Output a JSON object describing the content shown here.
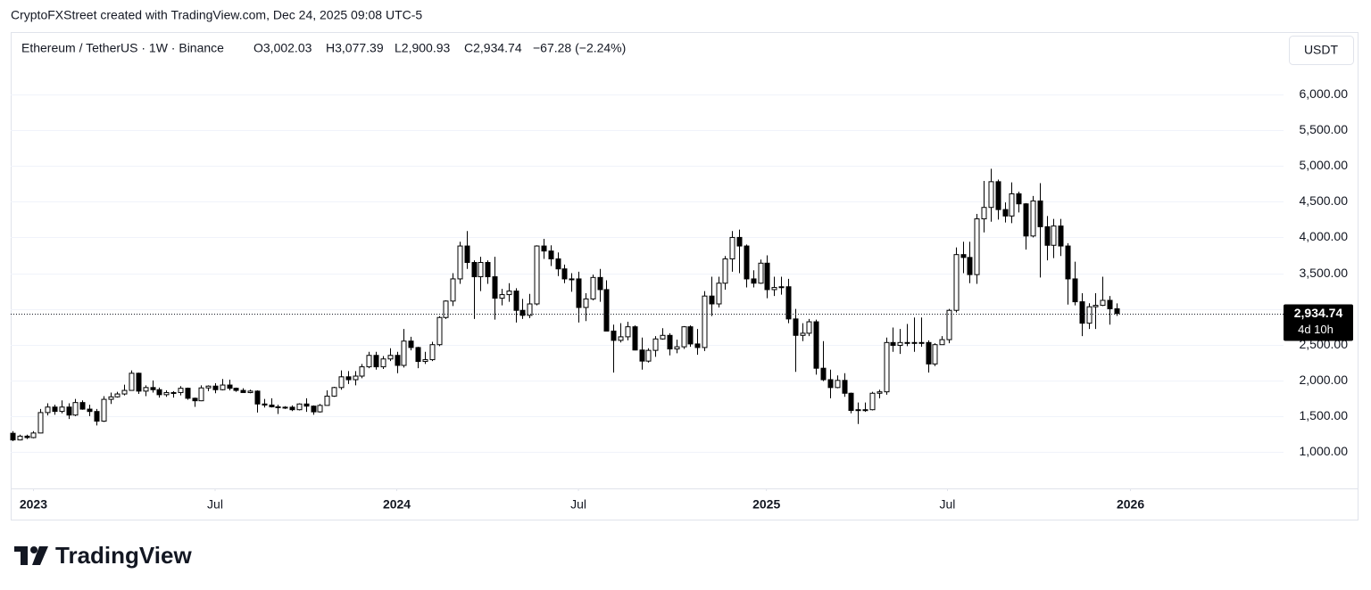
{
  "attribution": "CryptoFXStreet created with TradingView.com, Dec 24, 2025 09:08 UTC-5",
  "brand": "TradingView",
  "chart_data": {
    "type": "candlestick",
    "legend": {
      "symbol": "Ethereum / TetherUS · 1W · Binance",
      "open": "O3,002.03",
      "high": "H3,077.39",
      "low": "L2,900.93",
      "close": "C2,934.74",
      "change": "−67.28 (−2.24%)"
    },
    "currency": "USDT",
    "open": [
      1260,
      1167,
      1220,
      1200,
      1264,
      1550,
      1627,
      1566,
      1627,
      1515,
      1690,
      1598,
      1565,
      1430,
      1735,
      1770,
      1810,
      1860,
      2100,
      1850,
      1900,
      1870,
      1800,
      1830,
      1830,
      1890,
      1750,
      1715,
      1895,
      1920,
      1870,
      1935,
      1890,
      1860,
      1830,
      1850,
      1670,
      1655,
      1630,
      1620,
      1625,
      1590,
      1670,
      1640,
      1560,
      1650,
      1780,
      1900,
      2050,
      2010,
      2060,
      2190,
      2350,
      2190,
      2300,
      2350,
      2210,
      2550,
      2460,
      2265,
      2290,
      2500,
      2880,
      3110,
      3420,
      3880,
      3650,
      3450,
      3650,
      3450,
      3150,
      3200,
      3250,
      2980,
      2910,
      3070,
      3880,
      3810,
      3700,
      3560,
      3420,
      3420,
      3020,
      3140,
      3440,
      3270,
      2690,
      2560,
      2610,
      2750,
      2425,
      2270,
      2420,
      2580,
      2630,
      2440,
      2470,
      2750,
      2510,
      2460,
      3180,
      3070,
      3360,
      3700,
      4000,
      3880,
      3420,
      3360,
      3640,
      3270,
      3300,
      3310,
      2860,
      2630,
      2660,
      2820,
      2170,
      2010,
      1900,
      2000,
      1820,
      1580,
      1590,
      1590,
      1820,
      1840,
      2530,
      2490,
      2530,
      2530,
      2520,
      2530,
      2230,
      2500,
      2570,
      2980,
      3760,
      3720,
      3480,
      4260,
      4420,
      4780,
      4390,
      4300,
      4610,
      4470,
      4020,
      4510,
      4150,
      3890,
      4160,
      3880,
      3420,
      3100,
      2800,
      3030,
      3050,
      3120,
      3002.03
    ],
    "high": [
      1290,
      1240,
      1240,
      1290,
      1600,
      1680,
      1660,
      1720,
      1680,
      1740,
      1720,
      1660,
      1600,
      1780,
      1830,
      1840,
      1940,
      2140,
      2110,
      1930,
      2000,
      1900,
      1860,
      1850,
      1920,
      1900,
      1760,
      1930,
      1930,
      1960,
      2020,
      2010,
      1900,
      1890,
      1870,
      1860,
      1740,
      1750,
      1660,
      1640,
      1650,
      1680,
      1750,
      1650,
      1670,
      1860,
      1910,
      2140,
      2130,
      2130,
      2230,
      2400,
      2400,
      2340,
      2450,
      2400,
      2720,
      2610,
      2470,
      2400,
      2540,
      2900,
      3120,
      3500,
      3940,
      4090,
      3680,
      3730,
      3680,
      3730,
      3280,
      3360,
      3290,
      3140,
      3210,
      3890,
      3980,
      3890,
      3790,
      3620,
      3500,
      3520,
      3220,
      3480,
      3560,
      3400,
      2780,
      2800,
      2820,
      2770,
      2600,
      2450,
      2620,
      2730,
      2660,
      2570,
      2760,
      2770,
      2720,
      3250,
      3450,
      3450,
      3740,
      4090,
      4110,
      3900,
      3540,
      3690,
      3750,
      3450,
      3450,
      3420,
      3000,
      2800,
      2860,
      2850,
      2550,
      2150,
      2070,
      2100,
      1830,
      1690,
      1690,
      1840,
      1870,
      2600,
      2740,
      2720,
      2790,
      2880,
      2880,
      2560,
      2520,
      2620,
      3000,
      3860,
      3940,
      3940,
      4330,
      4790,
      4960,
      4810,
      4490,
      4770,
      4640,
      4480,
      4580,
      4760,
      4300,
      4260,
      4260,
      3920,
      3660,
      3220,
      3080,
      3220,
      3450,
      3180,
      3077.39
    ],
    "low": [
      1150,
      1160,
      1180,
      1190,
      1260,
      1510,
      1520,
      1540,
      1460,
      1500,
      1590,
      1500,
      1370,
      1420,
      1670,
      1760,
      1790,
      1860,
      1810,
      1780,
      1830,
      1760,
      1770,
      1760,
      1790,
      1730,
      1630,
      1710,
      1850,
      1820,
      1860,
      1860,
      1840,
      1830,
      1820,
      1550,
      1620,
      1620,
      1530,
      1600,
      1570,
      1580,
      1560,
      1520,
      1550,
      1650,
      1770,
      1870,
      1950,
      1930,
      2030,
      2170,
      2150,
      2160,
      2270,
      2100,
      2180,
      2420,
      2170,
      2230,
      2270,
      2480,
      2860,
      3040,
      3350,
      3560,
      2860,
      3250,
      3350,
      2850,
      3050,
      3100,
      2810,
      2860,
      2870,
      3050,
      3700,
      3600,
      3460,
      3360,
      3240,
      2810,
      2830,
      3120,
      3100,
      2690,
      2110,
      2530,
      2560,
      2420,
      2150,
      2250,
      2330,
      2570,
      2350,
      2380,
      2440,
      2470,
      2360,
      2410,
      2900,
      3020,
      3270,
      3520,
      3500,
      3300,
      3300,
      3350,
      3150,
      3180,
      3200,
      2800,
      2120,
      2550,
      2620,
      2080,
      1990,
      1750,
      1890,
      1770,
      1540,
      1390,
      1560,
      1580,
      1750,
      1800,
      2400,
      2370,
      2480,
      2400,
      2470,
      2110,
      2200,
      2500,
      2520,
      2950,
      3500,
      3360,
      3350,
      4070,
      4220,
      4250,
      4210,
      4200,
      4350,
      3830,
      4000,
      3440,
      3680,
      3710,
      3740,
      3060,
      3050,
      2620,
      2720,
      2720,
      3040,
      2780,
      2900.93
    ],
    "close": [
      1167,
      1220,
      1200,
      1264,
      1550,
      1627,
      1566,
      1627,
      1515,
      1690,
      1598,
      1565,
      1430,
      1735,
      1770,
      1810,
      1860,
      2100,
      1850,
      1900,
      1870,
      1800,
      1830,
      1830,
      1890,
      1750,
      1715,
      1895,
      1920,
      1870,
      1935,
      1890,
      1860,
      1830,
      1850,
      1670,
      1655,
      1630,
      1620,
      1625,
      1590,
      1670,
      1640,
      1560,
      1650,
      1780,
      1900,
      2050,
      2010,
      2060,
      2190,
      2350,
      2190,
      2300,
      2350,
      2210,
      2550,
      2460,
      2265,
      2290,
      2500,
      2880,
      3110,
      3420,
      3880,
      3650,
      3450,
      3650,
      3450,
      3150,
      3200,
      3250,
      2980,
      2910,
      3070,
      3880,
      3810,
      3700,
      3560,
      3420,
      3420,
      3020,
      3140,
      3440,
      3270,
      2690,
      2560,
      2610,
      2750,
      2425,
      2270,
      2420,
      2580,
      2630,
      2440,
      2470,
      2750,
      2510,
      2460,
      3180,
      3070,
      3360,
      3700,
      4000,
      3880,
      3420,
      3360,
      3640,
      3270,
      3300,
      3310,
      2860,
      2630,
      2660,
      2820,
      2170,
      2010,
      1900,
      2000,
      1820,
      1580,
      1590,
      1590,
      1820,
      1840,
      2530,
      2490,
      2530,
      2530,
      2520,
      2530,
      2230,
      2500,
      2570,
      2980,
      3760,
      3720,
      3480,
      4260,
      4420,
      4780,
      4390,
      4300,
      4610,
      4470,
      4020,
      4510,
      4150,
      3890,
      4160,
      3880,
      3420,
      3100,
      2800,
      3030,
      3050,
      3120,
      3002.03,
      2934.74
    ],
    "up_color": "#ffffff",
    "down_color": "#000000",
    "wick_color": "#000000",
    "xlim": [
      -0.25,
      181.9
    ],
    "xticks": [
      {
        "value": 3,
        "label": "2023"
      },
      {
        "value": 29,
        "label": "Jul"
      },
      {
        "value": 55,
        "label": "2024"
      },
      {
        "value": 81,
        "label": "Jul"
      },
      {
        "value": 107.9,
        "label": "2025"
      },
      {
        "value": 133.8,
        "label": "Jul"
      },
      {
        "value": 160,
        "label": "2026"
      }
    ],
    "ylim": [
      489,
      6873
    ],
    "yticks": [
      {
        "value": 1000,
        "label": "1,000.00"
      },
      {
        "value": 1500,
        "label": "1,500.00"
      },
      {
        "value": 2000,
        "label": "2,000.00"
      },
      {
        "value": 2500,
        "label": "2,500.00"
      },
      {
        "value": 3000,
        "label": "3,000.00"
      },
      {
        "value": 3500,
        "label": "3,500.00"
      },
      {
        "value": 4000,
        "label": "4,000.00"
      },
      {
        "value": 4500,
        "label": "4,500.00"
      },
      {
        "value": 5000,
        "label": "5,000.00"
      },
      {
        "value": 5500,
        "label": "5,500.00"
      },
      {
        "value": 6000,
        "label": "6,000.00"
      }
    ],
    "grid": true,
    "last_price_label": "2,934.74",
    "countdown": "4d 10h"
  }
}
